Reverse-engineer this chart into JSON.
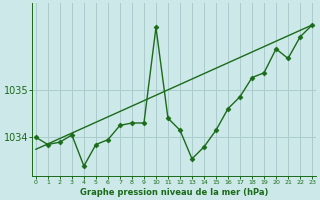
{
  "x": [
    0,
    1,
    2,
    3,
    4,
    5,
    6,
    7,
    8,
    9,
    10,
    11,
    12,
    13,
    14,
    15,
    16,
    17,
    18,
    19,
    20,
    21,
    22,
    23
  ],
  "pressure": [
    1034.0,
    1033.85,
    1033.9,
    1034.05,
    1033.4,
    1033.85,
    1033.95,
    1034.25,
    1034.3,
    1034.3,
    1036.3,
    1034.4,
    1034.15,
    1033.55,
    1033.8,
    1034.15,
    1034.6,
    1034.85,
    1035.25,
    1035.35,
    1035.85,
    1035.65,
    1036.1,
    1036.35
  ],
  "ylim_low": 1033.2,
  "ylim_high": 1036.8,
  "xlim_low": -0.3,
  "xlim_high": 23.3,
  "ytick_positions": [
    1034,
    1035
  ],
  "ytick_labels": [
    "1034",
    "1035"
  ],
  "xticks": [
    0,
    1,
    2,
    3,
    4,
    5,
    6,
    7,
    8,
    9,
    10,
    11,
    12,
    13,
    14,
    15,
    16,
    17,
    18,
    19,
    20,
    21,
    22,
    23
  ],
  "line_color": "#1a6b1a",
  "bg_color": "#cce8e8",
  "grid_color": "#aacccc",
  "xlabel": "Graphe pression niveau de la mer (hPa)",
  "marker": "D",
  "marker_size": 2.5,
  "line_width": 1.0,
  "trend_x0": 0,
  "trend_x1": 23,
  "trend_y0": 1033.75,
  "trend_y1": 1036.35
}
